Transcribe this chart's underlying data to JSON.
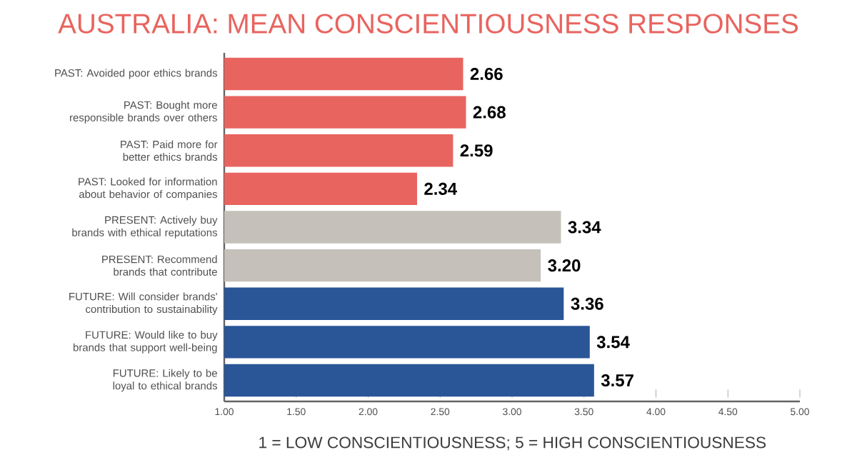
{
  "chart_data": {
    "type": "bar",
    "orientation": "horizontal",
    "title": "AUSTRALIA: MEAN CONSCIENTIOUSNESS RESPONSES",
    "categories": [
      "PAST: Avoided poor ethics brands",
      "PAST: Bought more responsible brands over others",
      "PAST: Paid more for better ethics brands",
      "PAST: Looked for information about behavior of companies",
      "PRESENT: Actively buy brands with ethical reputations",
      "PRESENT: Recommend brands that contribute",
      "FUTURE: Will consider brands' contribution to sustainability",
      "FUTURE: Would like to buy brands that support well-being",
      "FUTURE: Likely to be loyal to ethical brands"
    ],
    "values": [
      2.66,
      2.68,
      2.59,
      2.34,
      3.34,
      3.2,
      3.36,
      3.54,
      3.57
    ],
    "value_labels": [
      "2.66",
      "2.68",
      "2.59",
      "2.34",
      "3.34",
      "3.20",
      "3.36",
      "3.54",
      "3.57"
    ],
    "colors": [
      "#e8645f",
      "#e8645f",
      "#e8645f",
      "#e8645f",
      "#c5c1ba",
      "#c5c1ba",
      "#2a5698",
      "#2a5698",
      "#2a5698"
    ],
    "xlim": [
      1,
      5
    ],
    "xticks": [
      {
        "value": 1,
        "label": "1.00"
      },
      {
        "value": 1.5,
        "label": "1.50"
      },
      {
        "value": 2,
        "label": "2.00"
      },
      {
        "value": 2.5,
        "label": "2.50"
      },
      {
        "value": 3,
        "label": "3.00"
      },
      {
        "value": 3.5,
        "label": "3.50"
      },
      {
        "value": 4,
        "label": "4.00"
      },
      {
        "value": 4.5,
        "label": "4.50"
      },
      {
        "value": 5,
        "label": "5.00"
      }
    ],
    "annotations": [
      "1 = LOW CONSCIENTIOUSNESS; 5 = HIGH CONSCIENTIOUSNESS"
    ],
    "grid": false
  }
}
